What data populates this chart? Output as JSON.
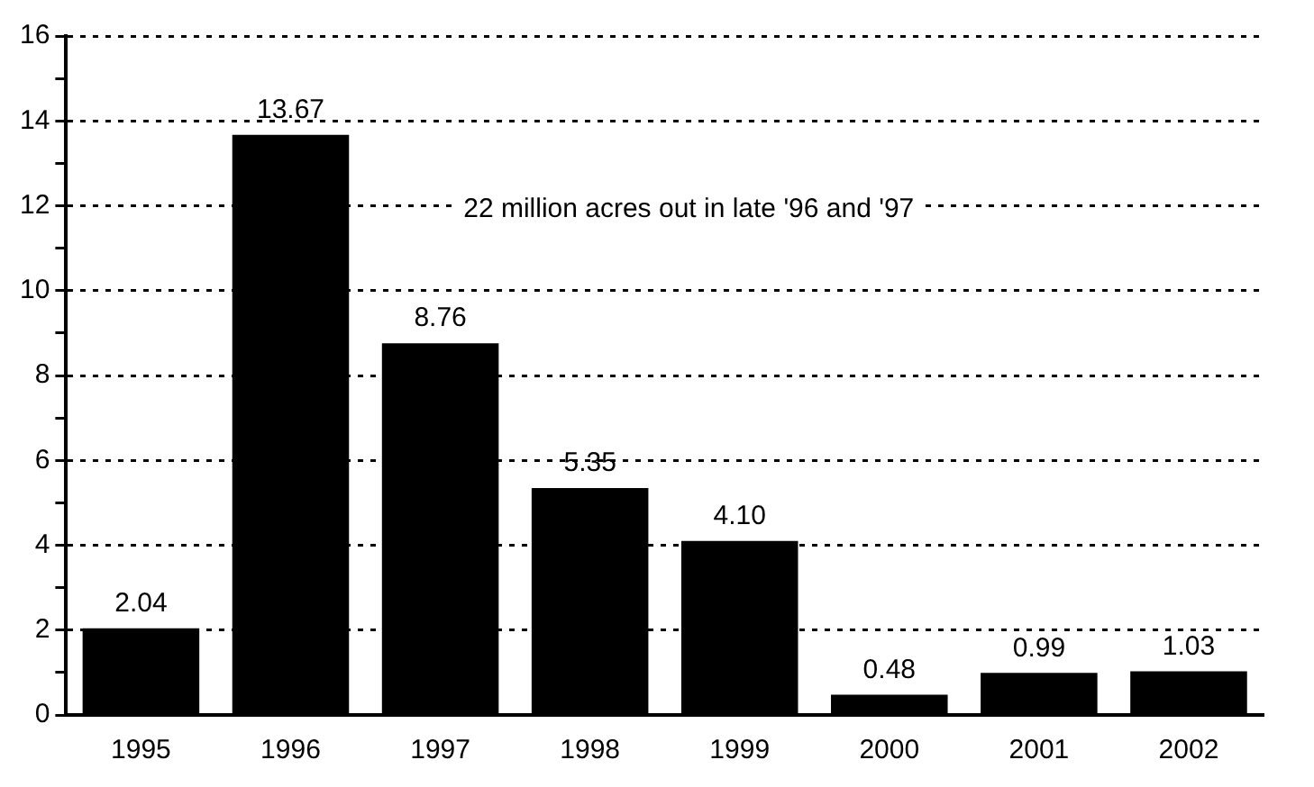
{
  "chart_data": {
    "type": "bar",
    "categories": [
      "1995",
      "1996",
      "1997",
      "1998",
      "1999",
      "2000",
      "2001",
      "2002"
    ],
    "values": [
      2.04,
      13.67,
      8.76,
      5.35,
      4.1,
      0.48,
      0.99,
      1.03
    ],
    "value_labels": [
      "2.04",
      "13.67",
      "8.76",
      "5.35",
      "4.10",
      "0.48",
      "0.99",
      "1.03"
    ],
    "color": "#000000",
    "ylim": [
      0,
      16
    ],
    "yticks": [
      0,
      {
        "value": 1,
        "label": null
      },
      2,
      {
        "value": 3,
        "label": null
      },
      4,
      {
        "value": 5,
        "label": null
      },
      6,
      {
        "value": 7,
        "label": null
      },
      8,
      {
        "value": 9,
        "label": null
      },
      10,
      {
        "value": 11,
        "label": null
      },
      12,
      {
        "value": 13,
        "label": null
      },
      14,
      {
        "value": 15,
        "label": null
      },
      16
    ],
    "grid": "y",
    "annotations": [
      "22 million acres out in late '96 and '97"
    ]
  }
}
